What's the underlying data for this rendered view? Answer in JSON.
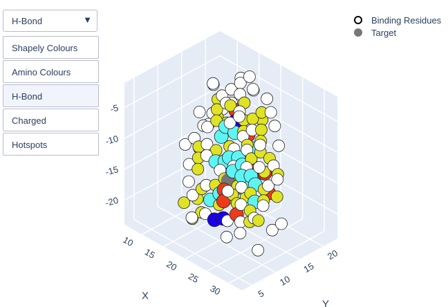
{
  "dropdown": {
    "selected": "H-Bond",
    "arrow_icon": "triangle-down-icon"
  },
  "menu": {
    "items": [
      {
        "label": "Shapely Colours",
        "active": false
      },
      {
        "label": "Amino Colours",
        "active": false
      },
      {
        "label": "H-Bond",
        "active": true
      },
      {
        "label": "Charged",
        "active": false
      },
      {
        "label": "Hotspots",
        "active": false
      }
    ]
  },
  "legend": {
    "items": [
      {
        "label": "Binding Residues",
        "symbol": "open-circle",
        "color": "#000000"
      },
      {
        "label": "Target",
        "symbol": "filled-circle",
        "color": "#777777"
      }
    ]
  },
  "chart_data": {
    "type": "scatter3d",
    "axes": {
      "x": {
        "label": "X",
        "ticks": [
          10,
          15,
          20,
          25,
          30
        ],
        "range": [
          6,
          33
        ]
      },
      "y": {
        "label": "Y",
        "ticks": [
          5,
          10,
          15,
          20
        ],
        "range": [
          3,
          23
        ]
      },
      "z": {
        "label": "",
        "ticks": [
          -20,
          -15,
          -10,
          -5
        ],
        "range": [
          -24,
          -1
        ]
      }
    },
    "colors": {
      "white": "#ffffff",
      "yellow": "#dfe324",
      "cyan": "#5ff4f4",
      "red": "#ec3a1c",
      "blue": "#1a00e8",
      "gray": "#777777",
      "scene_bg": "#e5ecf6"
    },
    "series": [
      {
        "name": "Binding Residues",
        "marker": "open-circle",
        "points": [
          [
            10,
            18,
            -6,
            "white"
          ],
          [
            11,
            17,
            -5,
            "white"
          ],
          [
            12,
            18,
            -7,
            "white"
          ],
          [
            13,
            19,
            -6,
            "white"
          ],
          [
            14,
            20,
            -5,
            "white"
          ],
          [
            15,
            19,
            -6,
            "white"
          ],
          [
            16,
            18,
            -8,
            "white"
          ],
          [
            12,
            16,
            -9,
            "white"
          ],
          [
            11,
            15,
            -11,
            "white"
          ],
          [
            13,
            14,
            -10,
            "white"
          ],
          [
            14,
            13,
            -12,
            "white"
          ],
          [
            15,
            12,
            -13,
            "white"
          ],
          [
            10,
            14,
            -13,
            "white"
          ],
          [
            9,
            13,
            -14,
            "white"
          ],
          [
            11,
            12,
            -16,
            "white"
          ],
          [
            12,
            11,
            -18,
            "white"
          ],
          [
            14,
            10,
            -19,
            "white"
          ],
          [
            16,
            11,
            -17,
            "white"
          ],
          [
            17,
            13,
            -15,
            "white"
          ],
          [
            18,
            15,
            -12,
            "white"
          ],
          [
            19,
            16,
            -10,
            "white"
          ],
          [
            20,
            17,
            -9,
            "white"
          ],
          [
            21,
            15,
            -11,
            "white"
          ],
          [
            22,
            14,
            -13,
            "white"
          ],
          [
            23,
            12,
            -15,
            "white"
          ],
          [
            24,
            11,
            -17,
            "white"
          ],
          [
            25,
            10,
            -19,
            "white"
          ],
          [
            26,
            9,
            -20,
            "white"
          ],
          [
            27,
            11,
            -18,
            "white"
          ],
          [
            28,
            12,
            -16,
            "white"
          ],
          [
            27,
            14,
            -14,
            "white"
          ],
          [
            26,
            16,
            -12,
            "white"
          ],
          [
            25,
            18,
            -10,
            "white"
          ],
          [
            23,
            19,
            -8,
            "white"
          ],
          [
            21,
            20,
            -7,
            "white"
          ],
          [
            19,
            21,
            -6,
            "white"
          ],
          [
            17,
            20,
            -5,
            "white"
          ],
          [
            18,
            19,
            -4,
            "white"
          ],
          [
            15,
            21,
            -4,
            "white"
          ],
          [
            13,
            21,
            -5,
            "white"
          ],
          [
            20,
            12,
            -18,
            "white"
          ],
          [
            22,
            10,
            -20,
            "white"
          ],
          [
            24,
            8,
            -21,
            "white"
          ],
          [
            29,
            13,
            -20,
            "white"
          ],
          [
            30,
            14,
            -19,
            "white"
          ],
          [
            29,
            10,
            -22,
            "white"
          ],
          [
            12,
            20,
            -9,
            "white"
          ],
          [
            11,
            19,
            -10,
            "white"
          ],
          [
            16,
            16,
            -9,
            "white"
          ],
          [
            17,
            17,
            -8,
            "white"
          ],
          [
            14,
            17,
            -7,
            "white"
          ],
          [
            19,
            14,
            -14,
            "white"
          ],
          [
            21,
            11,
            -16,
            "white"
          ],
          [
            18,
            9,
            -20,
            "white"
          ],
          [
            16,
            8,
            -21,
            "white"
          ],
          [
            10,
            17,
            -12,
            "white"
          ],
          [
            9,
            16,
            -10,
            "white"
          ],
          [
            24,
            15,
            -9,
            "white"
          ],
          [
            26,
            13,
            -11,
            "white"
          ],
          [
            28,
            15,
            -13,
            "white"
          ],
          [
            11,
            18,
            -8,
            "yellow"
          ],
          [
            12,
            17,
            -10,
            "yellow"
          ],
          [
            13,
            16,
            -8,
            "yellow"
          ],
          [
            14,
            15,
            -9,
            "yellow"
          ],
          [
            15,
            17,
            -7,
            "yellow"
          ],
          [
            16,
            19,
            -7,
            "yellow"
          ],
          [
            17,
            18,
            -9,
            "yellow"
          ],
          [
            18,
            17,
            -10,
            "yellow"
          ],
          [
            19,
            18,
            -8,
            "yellow"
          ],
          [
            20,
            19,
            -7,
            "yellow"
          ],
          [
            21,
            18,
            -9,
            "yellow"
          ],
          [
            22,
            17,
            -10,
            "yellow"
          ],
          [
            23,
            16,
            -11,
            "yellow"
          ],
          [
            24,
            17,
            -12,
            "yellow"
          ],
          [
            25,
            15,
            -13,
            "yellow"
          ],
          [
            26,
            14,
            -15,
            "yellow"
          ],
          [
            27,
            13,
            -16,
            "yellow"
          ],
          [
            28,
            11,
            -18,
            "yellow"
          ],
          [
            26,
            11,
            -19,
            "yellow"
          ],
          [
            25,
            12,
            -18,
            "yellow"
          ],
          [
            23,
            13,
            -17,
            "yellow"
          ],
          [
            21,
            13,
            -16,
            "yellow"
          ],
          [
            20,
            14,
            -15,
            "yellow"
          ],
          [
            18,
            13,
            -16,
            "yellow"
          ],
          [
            17,
            12,
            -17,
            "yellow"
          ],
          [
            15,
            11,
            -18,
            "yellow"
          ],
          [
            13,
            12,
            -16,
            "yellow"
          ],
          [
            12,
            13,
            -15,
            "yellow"
          ],
          [
            11,
            14,
            -14,
            "yellow"
          ],
          [
            10,
            15,
            -15,
            "yellow"
          ],
          [
            14,
            11,
            -20,
            "yellow"
          ],
          [
            16,
            10,
            -21,
            "yellow"
          ],
          [
            19,
            11,
            -19,
            "yellow"
          ],
          [
            22,
            12,
            -18,
            "yellow"
          ],
          [
            24,
            13,
            -16,
            "yellow"
          ],
          [
            20,
            16,
            -11,
            "yellow"
          ],
          [
            17,
            15,
            -12,
            "yellow"
          ],
          [
            15,
            14,
            -13,
            "yellow"
          ],
          [
            13,
            18,
            -11,
            "yellow"
          ],
          [
            19,
            20,
            -9,
            "yellow"
          ],
          [
            22,
            15,
            -12,
            "yellow"
          ],
          [
            27,
            16,
            -13,
            "yellow"
          ],
          [
            29,
            14,
            -15,
            "yellow"
          ],
          [
            12,
            10,
            -21,
            "yellow"
          ],
          [
            15,
            9,
            -22,
            "yellow"
          ],
          [
            17,
            14,
            -14,
            "cyan"
          ],
          [
            16,
            13,
            -14,
            "cyan"
          ],
          [
            18,
            14,
            -13,
            "cyan"
          ],
          [
            20,
            13,
            -14,
            "cyan"
          ],
          [
            21,
            14,
            -13,
            "cyan"
          ],
          [
            22,
            13,
            -14,
            "cyan"
          ],
          [
            15,
            16,
            -10,
            "cyan"
          ],
          [
            16,
            17,
            -11,
            "cyan"
          ],
          [
            19,
            15,
            -13,
            "cyan"
          ],
          [
            23,
            14,
            -14,
            "cyan"
          ],
          [
            24,
            14,
            -15,
            "cyan"
          ],
          [
            18,
            12,
            -18,
            "cyan"
          ],
          [
            17,
            11,
            -19,
            "cyan"
          ],
          [
            14,
            16,
            -12,
            "cyan"
          ],
          [
            20,
            17,
            -12,
            "cyan"
          ],
          [
            25,
            13,
            -17,
            "cyan"
          ],
          [
            21,
            16,
            -14,
            "red"
          ],
          [
            22,
            16,
            -15,
            "red"
          ],
          [
            24,
            16,
            -14,
            "red"
          ],
          [
            18,
            18,
            -11,
            "red"
          ],
          [
            14,
            19,
            -9,
            "red"
          ],
          [
            26,
            15,
            -16,
            "red"
          ],
          [
            19,
            12,
            -17,
            "red"
          ],
          [
            23,
            11,
            -19,
            "red"
          ],
          [
            20,
            11,
            -18,
            "red"
          ],
          [
            16,
            15,
            -16,
            "blue"
          ],
          [
            17,
            16,
            -15,
            "blue"
          ],
          [
            15,
            18,
            -10,
            "blue"
          ],
          [
            21,
            10,
            -20,
            "blue"
          ],
          [
            19,
            10,
            -21,
            "blue"
          ],
          [
            22,
            14,
            -16,
            "cyan"
          ],
          [
            18,
            16,
            -14,
            "yellow"
          ],
          [
            21,
            12,
            -17,
            "yellow"
          ]
        ]
      },
      {
        "name": "Target",
        "marker": "filled-circle",
        "color": "#777777",
        "points": [
          [
            19,
            13,
            -16
          ],
          [
            20,
            14,
            -17
          ],
          [
            18,
            14,
            -17
          ],
          [
            21,
            15,
            -16
          ]
        ]
      }
    ],
    "grid": true,
    "legend_position": "top-right"
  }
}
